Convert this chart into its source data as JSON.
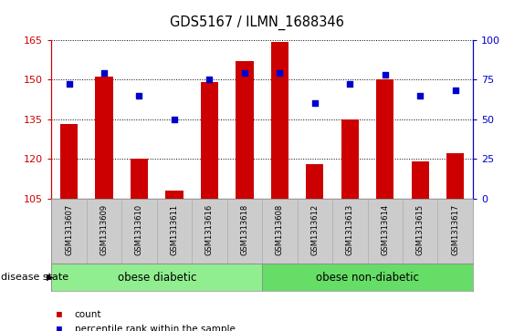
{
  "title": "GDS5167 / ILMN_1688346",
  "samples": [
    "GSM1313607",
    "GSM1313609",
    "GSM1313610",
    "GSM1313611",
    "GSM1313616",
    "GSM1313618",
    "GSM1313608",
    "GSM1313612",
    "GSM1313613",
    "GSM1313614",
    "GSM1313615",
    "GSM1313617"
  ],
  "counts": [
    133,
    151,
    120,
    108,
    149,
    157,
    164,
    118,
    135,
    150,
    119,
    122
  ],
  "percentiles": [
    72,
    79,
    65,
    50,
    75,
    79,
    79,
    60,
    72,
    78,
    65,
    68
  ],
  "bar_color": "#cc0000",
  "dot_color": "#0000cc",
  "ylim_left": [
    105,
    165
  ],
  "ylim_right": [
    0,
    100
  ],
  "yticks_left": [
    105,
    120,
    135,
    150,
    165
  ],
  "yticks_right": [
    0,
    25,
    50,
    75,
    100
  ],
  "groups": [
    {
      "label": "obese diabetic",
      "start": 0,
      "end": 6,
      "color": "#90ee90"
    },
    {
      "label": "obese non-diabetic",
      "start": 6,
      "end": 12,
      "color": "#66dd66"
    }
  ],
  "group_label": "disease state",
  "legend_items": [
    {
      "label": "count",
      "color": "#cc0000"
    },
    {
      "label": "percentile rank within the sample",
      "color": "#0000cc"
    }
  ],
  "tick_bg_color": "#cccccc",
  "plot_bg": "#ffffff",
  "bar_width": 0.5,
  "n_groups": 12,
  "group1_count": 6,
  "group2_count": 6
}
